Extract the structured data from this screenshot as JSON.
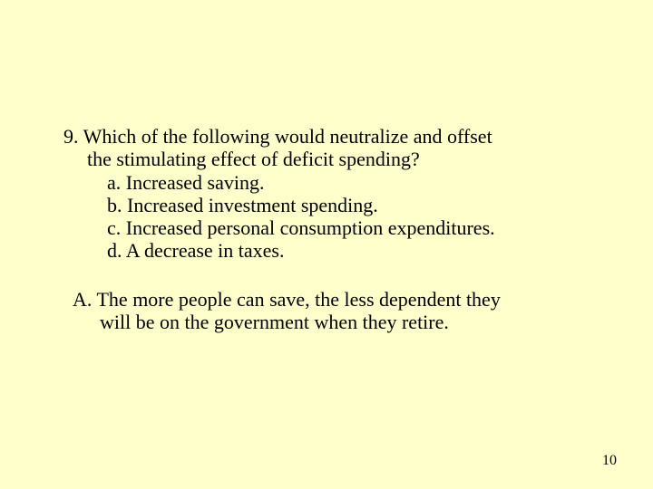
{
  "slide": {
    "background_color": "#ffffcc",
    "text_color": "#000000",
    "font_family": "Times New Roman",
    "question_fontsize": 22,
    "answer_fontsize": 22,
    "pagenum_fontsize": 16
  },
  "question": {
    "number": "9.",
    "stem_line1": "9. Which of the following would neutralize and offset",
    "stem_line2": "the stimulating effect of deficit spending?",
    "options": {
      "a": "a. Increased saving.",
      "b": "b. Increased investment spending.",
      "c": "c. Increased personal consumption expenditures.",
      "d": "d. A decrease in taxes."
    }
  },
  "answer": {
    "line1": "A. The more people can save, the less dependent they",
    "line2": "will be on the government when they retire."
  },
  "page_number": "10"
}
